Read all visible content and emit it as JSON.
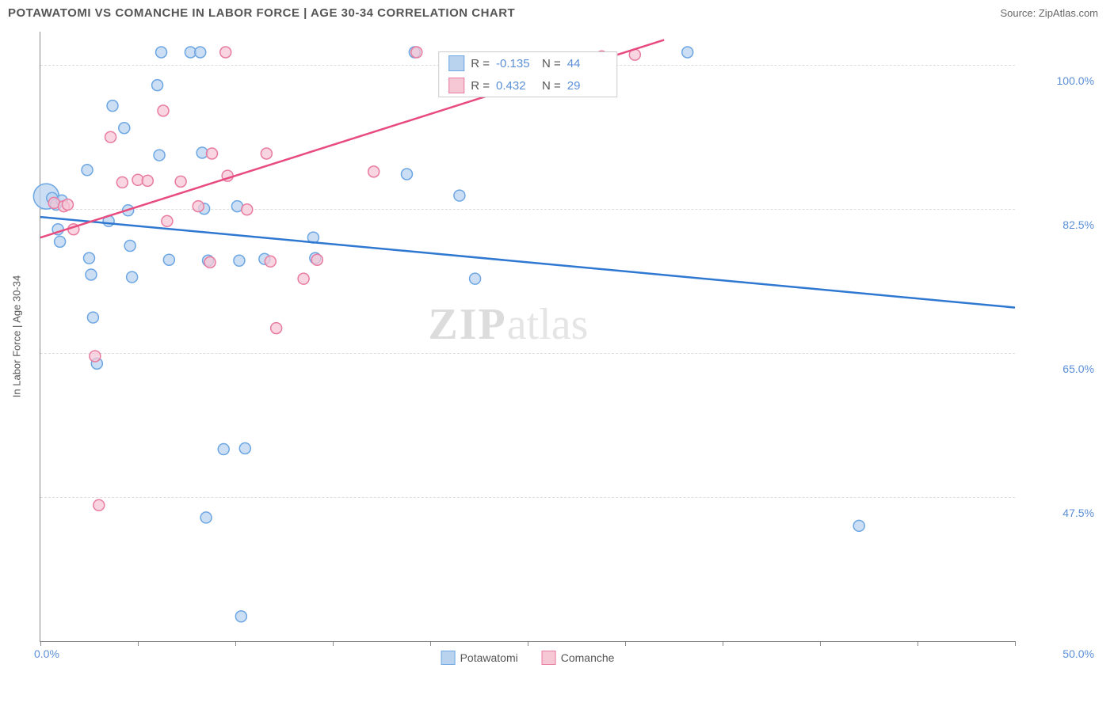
{
  "header": {
    "title": "POTAWATOMI VS COMANCHE IN LABOR FORCE | AGE 30-34 CORRELATION CHART",
    "source": "Source: ZipAtlas.com"
  },
  "chart": {
    "type": "scatter",
    "ylabel": "In Labor Force | Age 30-34",
    "xlim": [
      0,
      50
    ],
    "ylim": [
      30,
      104
    ],
    "x_tick_positions": [
      0,
      5,
      10,
      15,
      20,
      25,
      30,
      35,
      40,
      45,
      50
    ],
    "x_min_label": "0.0%",
    "x_max_label": "50.0%",
    "y_grid": [
      {
        "value": 100.0,
        "label": "100.0%"
      },
      {
        "value": 82.5,
        "label": "82.5%"
      },
      {
        "value": 65.0,
        "label": "65.0%"
      },
      {
        "value": 47.5,
        "label": "47.5%"
      }
    ],
    "background_color": "#ffffff",
    "grid_color": "#dddddd",
    "axis_color": "#888888",
    "label_color": "#555555",
    "tick_label_color": "#5b8fd6",
    "series": [
      {
        "name": "Potawatomi",
        "fill": "#b9d3ef",
        "stroke": "#6ca6e3",
        "r_label": "R =",
        "r_value": "-0.135",
        "n_label": "N =",
        "n_value": "44",
        "line_color": "#2f78d1",
        "line": {
          "x1": 0,
          "y1": 81.5,
          "x2": 50,
          "y2": 70.5
        },
        "points": [
          {
            "x": 0.3,
            "y": 84.0,
            "r": 16
          },
          {
            "x": 0.6,
            "y": 83.8
          },
          {
            "x": 0.8,
            "y": 83.0
          },
          {
            "x": 1.1,
            "y": 83.5
          },
          {
            "x": 0.9,
            "y": 80.0
          },
          {
            "x": 1.0,
            "y": 78.5
          },
          {
            "x": 2.4,
            "y": 87.2
          },
          {
            "x": 2.5,
            "y": 76.5
          },
          {
            "x": 2.6,
            "y": 74.5
          },
          {
            "x": 2.7,
            "y": 69.3
          },
          {
            "x": 2.9,
            "y": 63.7
          },
          {
            "x": 3.5,
            "y": 81.0
          },
          {
            "x": 3.7,
            "y": 95.0
          },
          {
            "x": 4.3,
            "y": 92.3
          },
          {
            "x": 4.5,
            "y": 82.3
          },
          {
            "x": 4.6,
            "y": 78.0
          },
          {
            "x": 4.7,
            "y": 74.2
          },
          {
            "x": 6.0,
            "y": 97.5
          },
          {
            "x": 6.1,
            "y": 89.0
          },
          {
            "x": 6.2,
            "y": 101.5
          },
          {
            "x": 6.6,
            "y": 76.3
          },
          {
            "x": 7.7,
            "y": 101.5
          },
          {
            "x": 8.2,
            "y": 101.5
          },
          {
            "x": 8.3,
            "y": 89.3
          },
          {
            "x": 8.4,
            "y": 82.5
          },
          {
            "x": 8.5,
            "y": 45.0
          },
          {
            "x": 8.6,
            "y": 76.2
          },
          {
            "x": 9.4,
            "y": 53.3
          },
          {
            "x": 10.1,
            "y": 82.8
          },
          {
            "x": 10.2,
            "y": 76.2
          },
          {
            "x": 10.3,
            "y": 33.0
          },
          {
            "x": 10.5,
            "y": 53.4
          },
          {
            "x": 11.5,
            "y": 76.4
          },
          {
            "x": 14.0,
            "y": 79.0
          },
          {
            "x": 14.1,
            "y": 76.5
          },
          {
            "x": 18.8,
            "y": 86.7
          },
          {
            "x": 19.2,
            "y": 101.5
          },
          {
            "x": 21.5,
            "y": 84.1
          },
          {
            "x": 22.3,
            "y": 74.0
          },
          {
            "x": 33.2,
            "y": 101.5
          },
          {
            "x": 42.0,
            "y": 44.0
          }
        ]
      },
      {
        "name": "Comanche",
        "fill": "#f6c7d5",
        "stroke": "#e87ba0",
        "r_label": "R =",
        "r_value": "0.432",
        "n_label": "N =",
        "n_value": "29",
        "line_color": "#e84c7f",
        "line": {
          "x1": 0,
          "y1": 79.0,
          "x2": 32,
          "y2": 103.0
        },
        "points": [
          {
            "x": 0.7,
            "y": 83.2
          },
          {
            "x": 1.2,
            "y": 82.8
          },
          {
            "x": 1.4,
            "y": 83.0
          },
          {
            "x": 1.7,
            "y": 80.0
          },
          {
            "x": 2.8,
            "y": 64.6
          },
          {
            "x": 3.0,
            "y": 46.5
          },
          {
            "x": 3.6,
            "y": 91.2
          },
          {
            "x": 4.2,
            "y": 85.7
          },
          {
            "x": 5.0,
            "y": 86.0
          },
          {
            "x": 5.5,
            "y": 85.9
          },
          {
            "x": 6.3,
            "y": 94.4
          },
          {
            "x": 6.5,
            "y": 81.0
          },
          {
            "x": 7.2,
            "y": 85.8
          },
          {
            "x": 8.1,
            "y": 82.8
          },
          {
            "x": 8.7,
            "y": 76.0
          },
          {
            "x": 8.8,
            "y": 89.2
          },
          {
            "x": 9.5,
            "y": 101.5
          },
          {
            "x": 9.6,
            "y": 86.5
          },
          {
            "x": 10.6,
            "y": 82.4
          },
          {
            "x": 11.6,
            "y": 89.2
          },
          {
            "x": 11.8,
            "y": 76.1
          },
          {
            "x": 12.1,
            "y": 68.0
          },
          {
            "x": 13.5,
            "y": 74.0
          },
          {
            "x": 14.2,
            "y": 76.3
          },
          {
            "x": 17.1,
            "y": 87.0
          },
          {
            "x": 19.3,
            "y": 101.5
          },
          {
            "x": 28.8,
            "y": 101.0
          },
          {
            "x": 30.5,
            "y": 101.2
          }
        ]
      }
    ],
    "legend": {
      "items": [
        {
          "label": "Potawatomi",
          "fill": "#b9d3ef",
          "stroke": "#6ca6e3"
        },
        {
          "label": "Comanche",
          "fill": "#f6c7d5",
          "stroke": "#e87ba0"
        }
      ]
    },
    "watermark": {
      "bold": "ZIP",
      "light": "atlas"
    }
  }
}
